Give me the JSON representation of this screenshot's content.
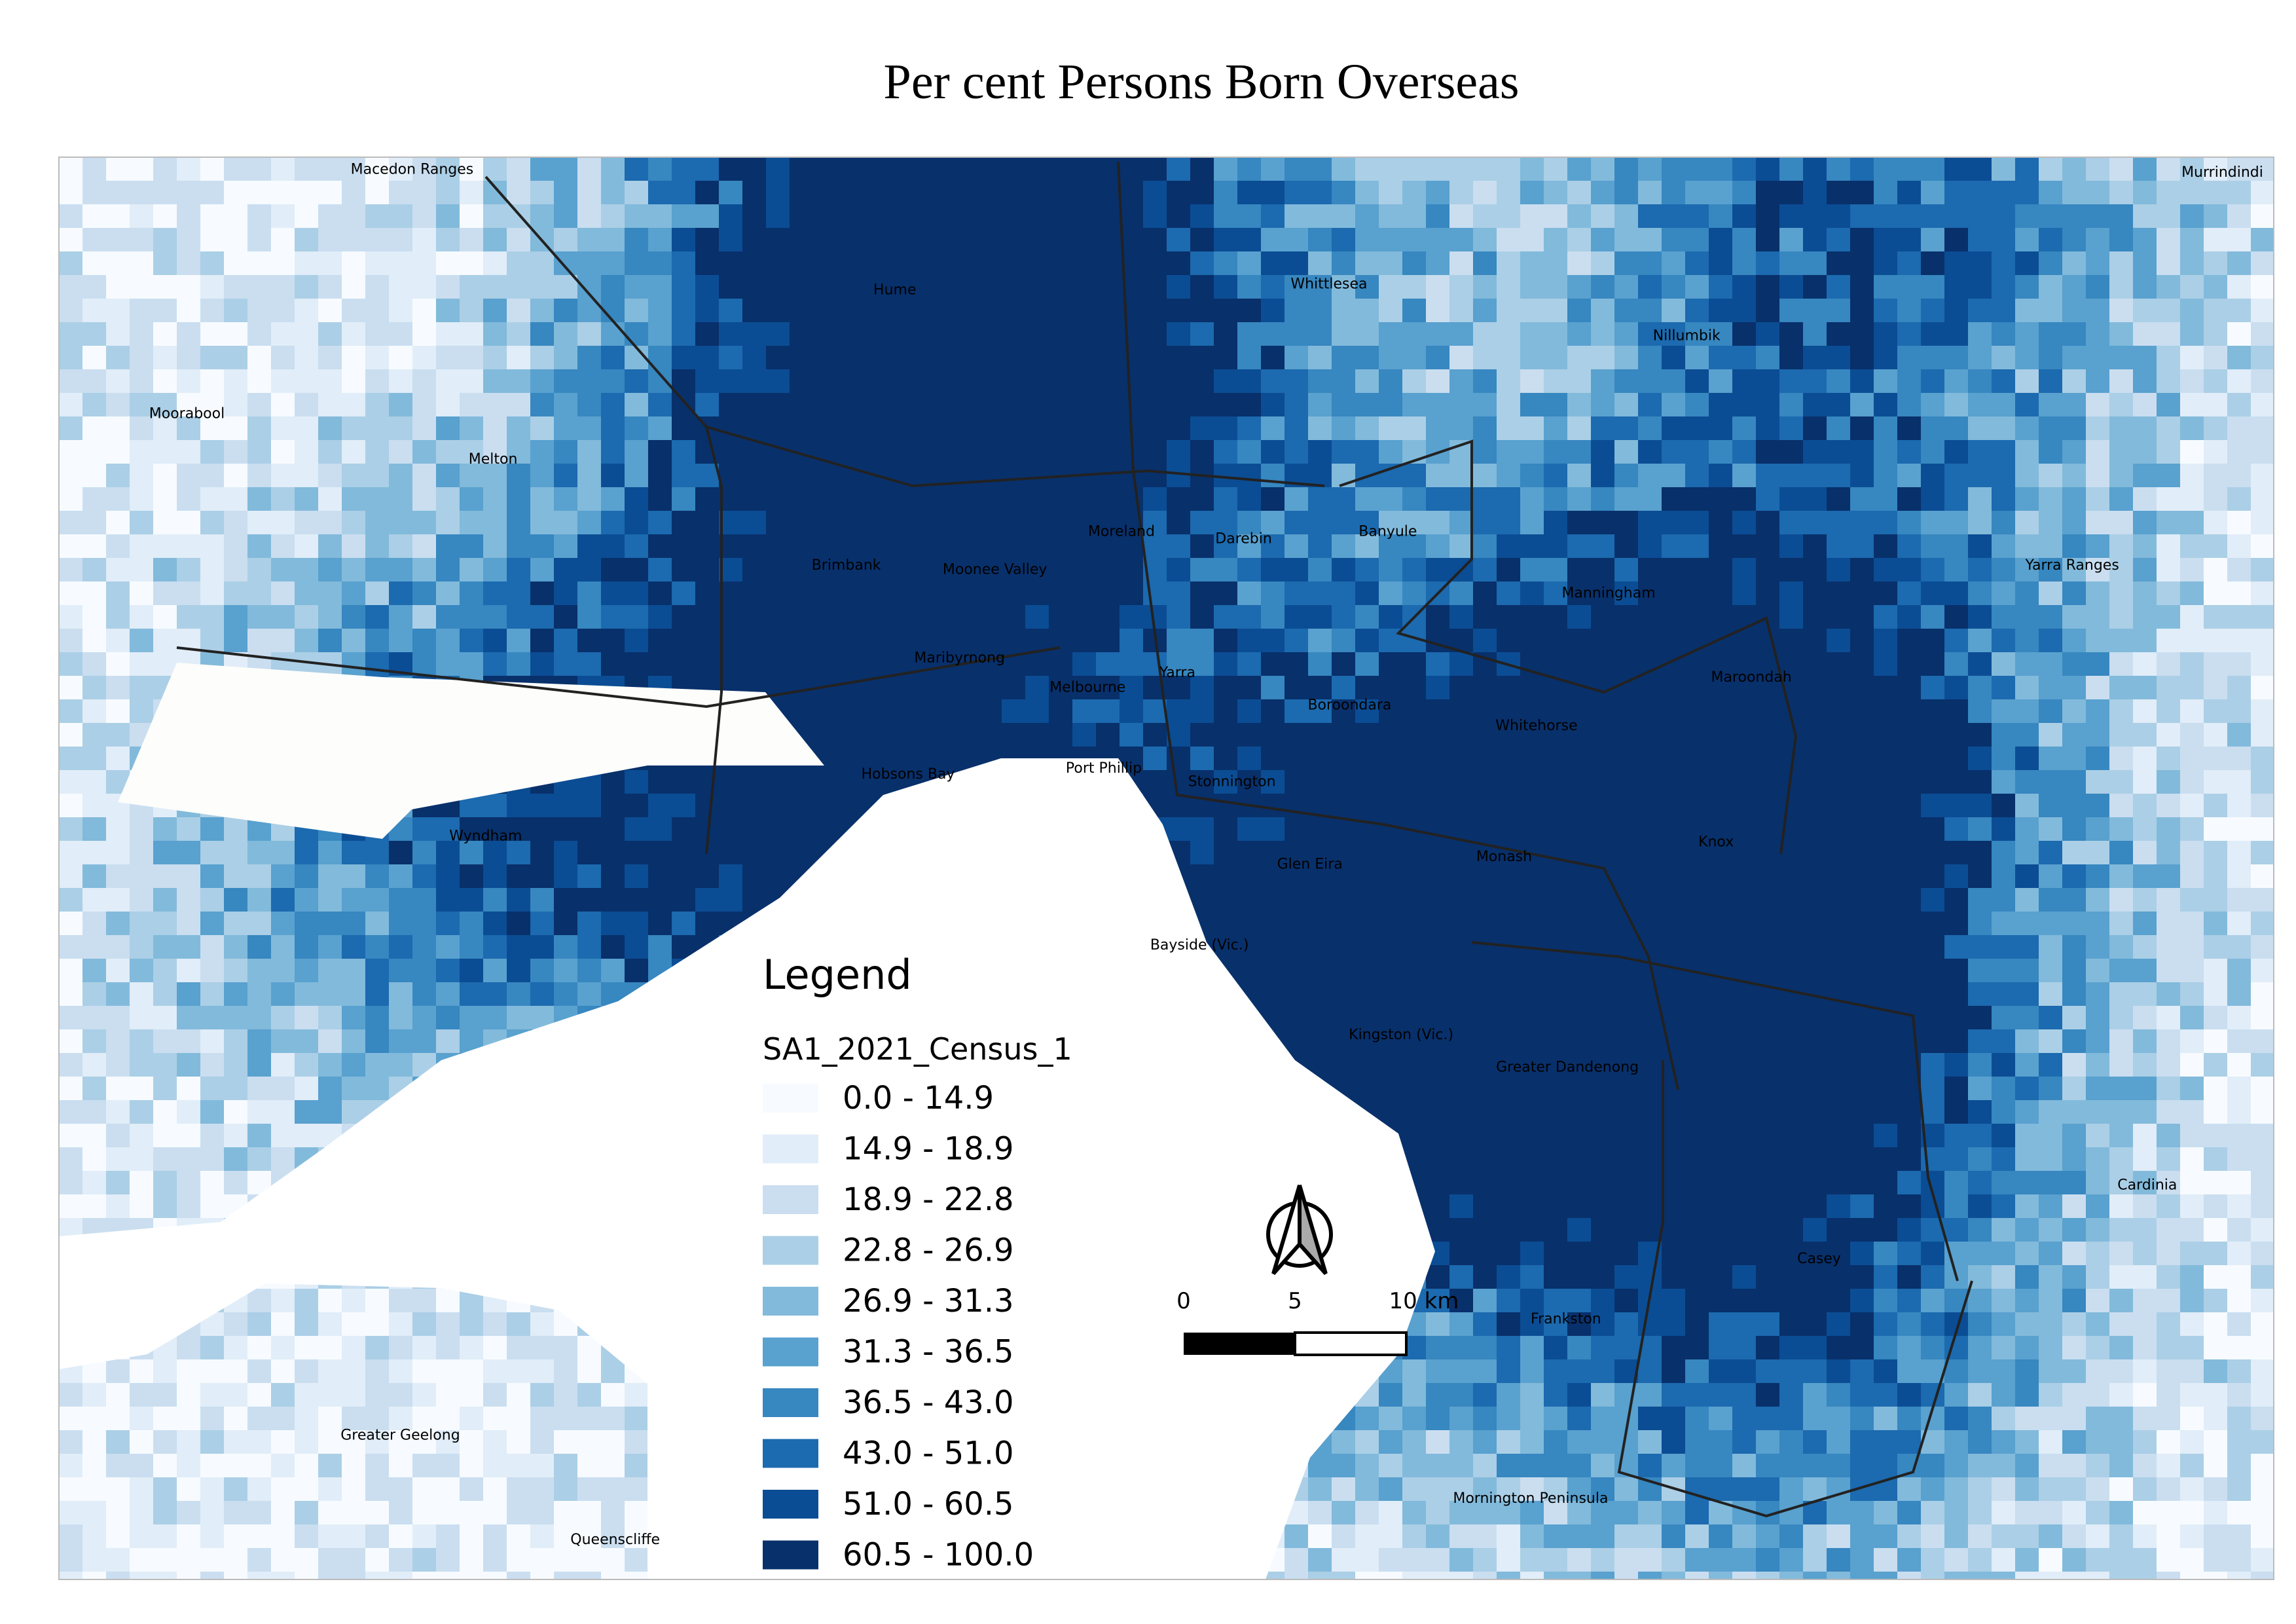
{
  "title": "Per cent Persons Born Overseas",
  "legend": {
    "heading": "Legend",
    "layer": "SA1_2021_Census_1",
    "items": [
      {
        "label": "0.0 - 14.9",
        "color": "#f7fbff"
      },
      {
        "label": "14.9 - 18.9",
        "color": "#e1edf8"
      },
      {
        "label": "18.9 - 22.8",
        "color": "#cadef0"
      },
      {
        "label": "22.8 - 26.9",
        "color": "#abcfe6"
      },
      {
        "label": "26.9 - 31.3",
        "color": "#82badb"
      },
      {
        "label": "31.3 - 36.5",
        "color": "#59a1cf"
      },
      {
        "label": "36.5 - 43.0",
        "color": "#3787c0"
      },
      {
        "label": "43.0 - 51.0",
        "color": "#1c6aaf"
      },
      {
        "label": "51.0 - 60.5",
        "color": "#0b4d94"
      },
      {
        "label": "60.5 - 100.0",
        "color": "#08306b"
      }
    ]
  },
  "scale_bar": {
    "labels": [
      "0",
      "5",
      "10 km"
    ]
  },
  "places": [
    "Macedon Ranges",
    "Murrindindi",
    "Hume",
    "Whittlesea",
    "Nillumbik",
    "Moorabool",
    "Melton",
    "Moreland",
    "Darebin",
    "Banyule",
    "Brimbank",
    "Moonee Valley",
    "Yarra Ranges",
    "Manningham",
    "Maribyrnong",
    "Melbourne",
    "Yarra",
    "Boroondara",
    "Maroondah",
    "Whitehorse",
    "Hobsons Bay",
    "Port Phillip",
    "Stonnington",
    "Wyndham",
    "Knox",
    "Monash",
    "Glen Eira",
    "Bayside (Vic.)",
    "Kingston (Vic.)",
    "Greater Dandenong",
    "Cardinia",
    "Casey",
    "Frankston",
    "Greater Geelong",
    "Mornington Peninsula",
    "Queenscliffe"
  ]
}
